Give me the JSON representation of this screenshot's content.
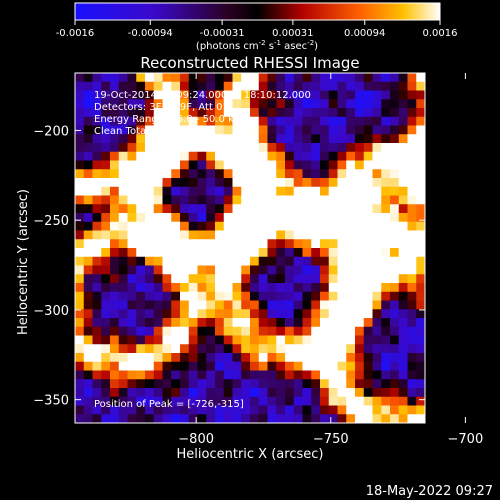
{
  "colorbar": {
    "ticks": [
      "-0.0016",
      "-0.00094",
      "-0.00031",
      "0.00031",
      "0.00094",
      "0.0016"
    ],
    "units_main": "(photons cm",
    "units_exp1": "-2",
    "units_mid": " s",
    "units_exp2": "-1",
    "units_end": " asec",
    "units_exp3": "-2",
    "units_close": ")",
    "range": [
      -0.0016,
      0.0016
    ]
  },
  "chart_data": {
    "type": "heatmap",
    "title": "Reconstructed RHESSI Image",
    "xlabel": "Heliocentric X (arcsec)",
    "ylabel": "Heliocentric Y (arcsec)",
    "xlim": [
      -845,
      -715
    ],
    "ylim": [
      -363,
      -168
    ],
    "x_ticks": [
      -800,
      -750,
      -700
    ],
    "x_tick_labels": [
      "−800",
      "−750",
      "−700"
    ],
    "y_ticks": [
      -200,
      -250,
      -300,
      -350
    ],
    "y_tick_labels": [
      "−200",
      "−250",
      "−300",
      "−350"
    ],
    "info_lines": [
      "19-Oct-2014 18:09:24.000 to 18:10:12.000",
      "Detectors: 3F 6F 9F, Att 0",
      "Energy Range: 25.0 - 50.0 keV",
      "Clean   Total counts: 436."
    ],
    "peak_label": "Position of Peak = [-726,-315]",
    "peak_position": [
      -726,
      -315
    ],
    "colormap": "rainbow-blue-to-white"
  },
  "footer": {
    "date": "18-May-2022 09:27"
  }
}
